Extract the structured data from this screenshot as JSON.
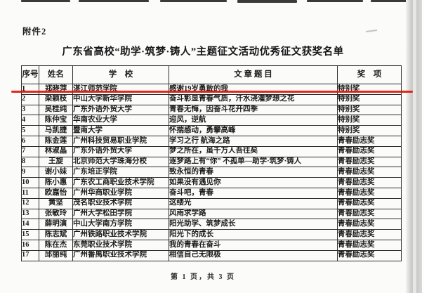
{
  "attachment_label": "附件2",
  "title": "广东省高校“助学·筑梦·铸人”主题征文活动优秀征文获奖名单",
  "annotation": {
    "highlight_color": "#e01508"
  },
  "table": {
    "headers": {
      "no": "序号",
      "name": "姓名",
      "school": "学　校",
      "title": "文 章 题 目",
      "award": "奖　项"
    },
    "rows": [
      {
        "no": "1",
        "name": "郑晓萍",
        "school": "湛江师范学院",
        "title": "感谢19岁勇敢的我",
        "award": "特别奖"
      },
      {
        "no": "2",
        "name": "梁颖枝",
        "school": "中山大学新华学院",
        "title": "奋斗彰显青春气质，汗水浇灌梦想之花",
        "award": "特别奖"
      },
      {
        "no": "3",
        "name": "吴桂纯",
        "school": "广东外语外贸大学",
        "title": "青春无悔，因奋斗花开四季",
        "award": "特别奖"
      },
      {
        "no": "4",
        "name": "陈仲宝",
        "school": "华南农业大学",
        "title": "迎风，逆航",
        "award": "特别奖"
      },
      {
        "no": "5",
        "name": "马凯捷",
        "school": "暨南大学",
        "title": "怀揣感动，勇攀高峰",
        "award": "特别奖"
      },
      {
        "no": "6",
        "name": "陈金莲",
        "school": "广州科技贸易职业学院",
        "title": "学习之行 航海之路",
        "award": "青春励志奖"
      },
      {
        "no": "7",
        "name": "林淑晶",
        "school": "广东外语外贸大学",
        "title": "梦之所在，虽千万人吾往矣",
        "award": "青春励志奖"
      },
      {
        "no": "8",
        "name": "王旋",
        "school": "北京师范大学珠海分校",
        "title": "逐梦路上有“你” 不孤单—助学·筑梦·铸人",
        "award": "青春励志奖"
      },
      {
        "no": "9",
        "name": "谢小妹",
        "school": "广东培正学院",
        "title": "致永恒的青春",
        "award": "青春励志奖"
      },
      {
        "no": "10",
        "name": "陈小惠",
        "school": "广东农工商职业技术学院",
        "title": "如果没有遇见你",
        "award": "青春励志奖"
      },
      {
        "no": "11",
        "name": "欧嘉怡",
        "school": "广州华商职业学院",
        "title": "奋斗吧，青春",
        "award": "青春励志奖"
      },
      {
        "no": "12",
        "name": "黄坚",
        "school": "茂名职业技术学院",
        "title": "这缕光",
        "award": "青春励志奖"
      },
      {
        "no": "13",
        "name": "张敏玲",
        "school": "广州大学松田学院",
        "title": "风雨求学路",
        "award": "青春励志奖"
      },
      {
        "no": "14",
        "name": "薛明演",
        "school": "中山大学南方学院",
        "title": "阳光助学、筑梦成长",
        "award": "青春励志奖"
      },
      {
        "no": "15",
        "name": "陈志斌",
        "school": "广州铁路职业技术学院",
        "title": "阳光下的成长",
        "award": "青春励志奖"
      },
      {
        "no": "16",
        "name": "陈在杰",
        "school": "东莞职业技术学院",
        "title": "我的青春在奋斗",
        "award": "青春励志奖"
      },
      {
        "no": "17",
        "name": "邱丽纯",
        "school": "广州番禺职业技术学院",
        "title": "相信自己无限极",
        "award": "青春励志奖"
      }
    ]
  },
  "footer": {
    "page_text": "第 1 页，共 3 页"
  }
}
